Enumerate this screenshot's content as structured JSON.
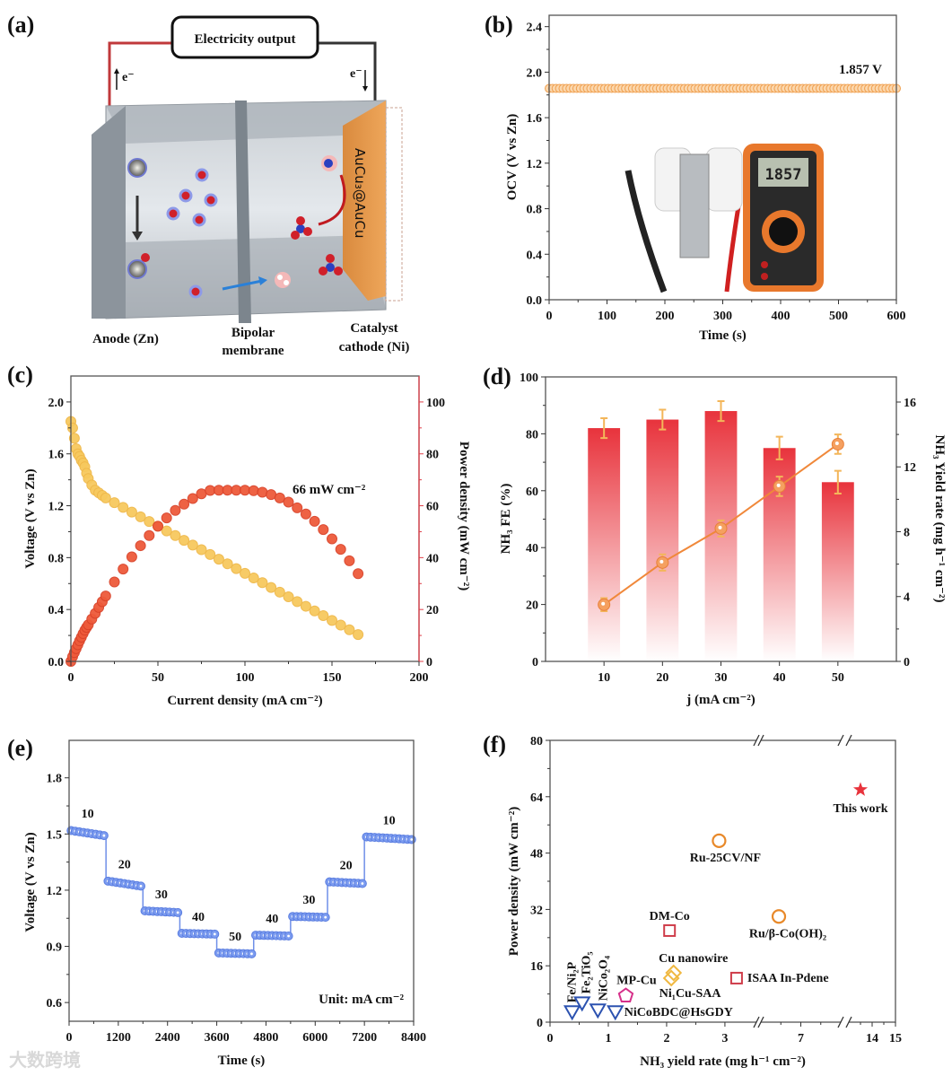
{
  "figure": {
    "watermark": "大数跨境"
  },
  "panel_a": {
    "label": "(a)",
    "box": "Electricity output",
    "e_left": "e⁻",
    "e_right": "e⁻",
    "catalyst": "AuCu₃@AuCu",
    "anode": "Anode (Zn)",
    "membrane_1": "Bipolar",
    "membrane_2": "membrane",
    "cathode_1": "Catalyst",
    "cathode_2": "cathode (Ni)"
  },
  "chart_data": [
    {
      "panel": "(b)",
      "type": "scatter",
      "title": "",
      "xlabel": "Time (s)",
      "ylabel": "OCV (V vs Zn)",
      "xlim": [
        0,
        600
      ],
      "ylim": [
        0,
        2.5
      ],
      "xticks": [
        "0",
        "100",
        "200",
        "300",
        "400",
        "500",
        "600"
      ],
      "yticks": [
        "0.0",
        "0.4",
        "0.8",
        "1.2",
        "1.6",
        "2.0",
        "2.4"
      ],
      "series": [
        {
          "name": "OCV",
          "x_start": 0,
          "x_end": 600,
          "x_step": 6,
          "y": 1.857,
          "color": "#f0a050"
        }
      ],
      "annotation": "1.857 V",
      "inset_photo": {
        "meter_display": "1857"
      }
    },
    {
      "panel": "(c)",
      "type": "line",
      "title": "",
      "xlabel": "Current density (mA cm⁻²)",
      "ylabel": "Voltage (V vs Zn)",
      "ylabel_right": "Power density (mW cm⁻²)",
      "xlim": [
        0,
        200
      ],
      "ylim": [
        0,
        2.2
      ],
      "ylim_right": [
        0,
        110
      ],
      "xticks": [
        "0",
        "50",
        "100",
        "150",
        "200"
      ],
      "yticks": [
        "0.0",
        "0.4",
        "0.8",
        "1.2",
        "1.6",
        "2.0"
      ],
      "yticks_right": [
        "0",
        "20",
        "40",
        "60",
        "80",
        "100"
      ],
      "x": [
        0,
        1,
        2,
        3,
        4,
        5,
        6,
        7,
        8,
        9,
        10,
        12,
        14,
        16,
        18,
        20,
        25,
        30,
        35,
        40,
        45,
        50,
        55,
        60,
        65,
        70,
        75,
        80,
        85,
        90,
        95,
        100,
        105,
        110,
        115,
        120,
        125,
        130,
        135,
        140,
        145,
        150,
        155,
        160,
        165
      ],
      "series": [
        {
          "name": "Voltage",
          "axis": "left",
          "color": "#f7c95e",
          "values": [
            1.85,
            1.8,
            1.72,
            1.64,
            1.6,
            1.58,
            1.55,
            1.53,
            1.5,
            1.45,
            1.41,
            1.36,
            1.32,
            1.3,
            1.28,
            1.26,
            1.224,
            1.187,
            1.151,
            1.115,
            1.078,
            1.042,
            1.006,
            0.97,
            0.933,
            0.897,
            0.861,
            0.824,
            0.788,
            0.752,
            0.715,
            0.679,
            0.643,
            0.607,
            0.57,
            0.534,
            0.498,
            0.461,
            0.425,
            0.389,
            0.353,
            0.316,
            0.28,
            0.244,
            0.207
          ]
        },
        {
          "name": "Power density",
          "axis": "right",
          "color": "#ee5a3a",
          "values": [
            0,
            1.8,
            3.4,
            4.9,
            6.4,
            7.9,
            9.3,
            10.7,
            12.0,
            13.1,
            14.1,
            16.3,
            18.5,
            20.8,
            23.0,
            25.2,
            30.6,
            35.6,
            40.3,
            44.6,
            48.5,
            52.1,
            55.3,
            58.2,
            60.6,
            62.8,
            64.6,
            65.9,
            66.0,
            66.0,
            66.0,
            66.0,
            65.8,
            65.2,
            64.3,
            63.0,
            61.4,
            59.2,
            56.8,
            54.0,
            50.8,
            47.2,
            43.2,
            38.8,
            33.8
          ]
        }
      ],
      "annotation": "66 mW cm⁻²"
    },
    {
      "panel": "(d)",
      "type": "bar",
      "title": "",
      "xlabel": "j (mA cm⁻²)",
      "ylabel": "NH₃ FE (%)",
      "ylabel_right": "NH₃ Yield rate (mg h⁻¹ cm⁻²)",
      "xlim": [
        0,
        60
      ],
      "ylim": [
        0,
        100
      ],
      "ylim_right": [
        0,
        17.55
      ],
      "categories": [
        "10",
        "20",
        "30",
        "40",
        "50"
      ],
      "yticks": [
        "0",
        "20",
        "40",
        "60",
        "80",
        "100"
      ],
      "yticks_right": [
        "0",
        "4",
        "8",
        "12",
        "16"
      ],
      "series": [
        {
          "name": "NH₃ FE",
          "type": "bar",
          "axis": "left",
          "color": "#e8333c",
          "values": [
            82,
            85,
            88,
            75,
            63
          ],
          "errors": [
            3.5,
            3.5,
            3.5,
            4,
            4
          ]
        },
        {
          "name": "NH₃ Yield rate",
          "type": "line",
          "axis": "right",
          "color": "#f0883a",
          "values": [
            3.5,
            6.1,
            8.2,
            10.8,
            13.4
          ],
          "errors": [
            0.4,
            0.5,
            0.5,
            0.6,
            0.6
          ]
        }
      ]
    },
    {
      "panel": "(e)",
      "type": "line",
      "title": "",
      "xlabel": "Time (s)",
      "ylabel": "Voltage (V vs Zn)",
      "xlim": [
        0,
        8400
      ],
      "ylim": [
        0.5,
        2.0
      ],
      "xticks": [
        "0",
        "1200",
        "2400",
        "3600",
        "4800",
        "6000",
        "7200",
        "8400"
      ],
      "yticks": [
        "0.6",
        "0.9",
        "1.2",
        "1.5",
        "1.8"
      ],
      "color": "#6f8fe8",
      "segments": [
        {
          "label": "10",
          "t_start": 0,
          "t_end": 900,
          "v_start": 1.52,
          "v_end": 1.49
        },
        {
          "label": "20",
          "t_start": 900,
          "t_end": 1800,
          "v_start": 1.25,
          "v_end": 1.22
        },
        {
          "label": "30",
          "t_start": 1800,
          "t_end": 2700,
          "v_start": 1.09,
          "v_end": 1.08
        },
        {
          "label": "40",
          "t_start": 2700,
          "t_end": 3600,
          "v_start": 0.97,
          "v_end": 0.965
        },
        {
          "label": "50",
          "t_start": 3600,
          "t_end": 4500,
          "v_start": 0.865,
          "v_end": 0.86
        },
        {
          "label": "40",
          "t_start": 4500,
          "t_end": 5400,
          "v_start": 0.96,
          "v_end": 0.955
        },
        {
          "label": "30",
          "t_start": 5400,
          "t_end": 6300,
          "v_start": 1.06,
          "v_end": 1.055
        },
        {
          "label": "20",
          "t_start": 6300,
          "t_end": 7200,
          "v_start": 1.245,
          "v_end": 1.235
        },
        {
          "label": "10",
          "t_start": 7200,
          "t_end": 8400,
          "v_start": 1.485,
          "v_end": 1.47
        }
      ],
      "annotation": "Unit: mA cm⁻²"
    },
    {
      "panel": "(f)",
      "type": "scatter",
      "title": "",
      "xlabel": "NH₃ yield rate (mg h⁻¹ cm⁻²)",
      "ylabel": "Power density (mW cm⁻²)",
      "x_segments": [
        [
          0,
          3.54
        ],
        [
          5,
          9
        ],
        [
          13,
          15
        ]
      ],
      "ylim": [
        0,
        80
      ],
      "xticks": [
        "0",
        "1",
        "2",
        "3",
        "7",
        "14",
        "15"
      ],
      "yticks": [
        "0",
        "16",
        "32",
        "48",
        "64",
        "80"
      ],
      "points": [
        {
          "name": "Fe/Ni₂P",
          "x": 0.38,
          "y": 3,
          "marker": "triangle-down",
          "color": "#2c52b0"
        },
        {
          "name": "Fe₂TiO₅",
          "x": 0.55,
          "y": 5.5,
          "marker": "triangle-down",
          "color": "#2c52b0"
        },
        {
          "name": "NiCo₂O₄",
          "x": 0.82,
          "y": 3.5,
          "marker": "triangle-down",
          "color": "#2c52b0"
        },
        {
          "name": "NiCoBDC@HsGDY",
          "x": 1.12,
          "y": 3,
          "marker": "triangle-down",
          "color": "#2c52b0"
        },
        {
          "name": "MP-Cu",
          "x": 1.3,
          "y": 7.5,
          "marker": "pentagon",
          "color": "#d6308a"
        },
        {
          "name": "DM-Co",
          "x": 2.05,
          "y": 26,
          "marker": "square",
          "color": "#cf3d4a"
        },
        {
          "name": "Cu nanowire",
          "x": 2.12,
          "y": 14,
          "marker": "diamond",
          "color": "#f0b840"
        },
        {
          "name": "Ni₁Cu-SAA",
          "x": 2.08,
          "y": 12.5,
          "marker": "diamond",
          "color": "#f0b840"
        },
        {
          "name": "ISAA In-Pdene",
          "x": 3.2,
          "y": 12.5,
          "marker": "square",
          "color": "#cf3d4a"
        },
        {
          "name": "Ru-25CV/NF",
          "x": 2.9,
          "y": 51.5,
          "marker": "circle",
          "color": "#e8892a"
        },
        {
          "name": "Ru/β-Co(OH)₂",
          "x": 5.9,
          "y": 30,
          "marker": "circle",
          "color": "#e8892a"
        },
        {
          "name": "This work",
          "x": 13.5,
          "y": 66,
          "marker": "star",
          "color": "#e8333c"
        }
      ]
    }
  ]
}
